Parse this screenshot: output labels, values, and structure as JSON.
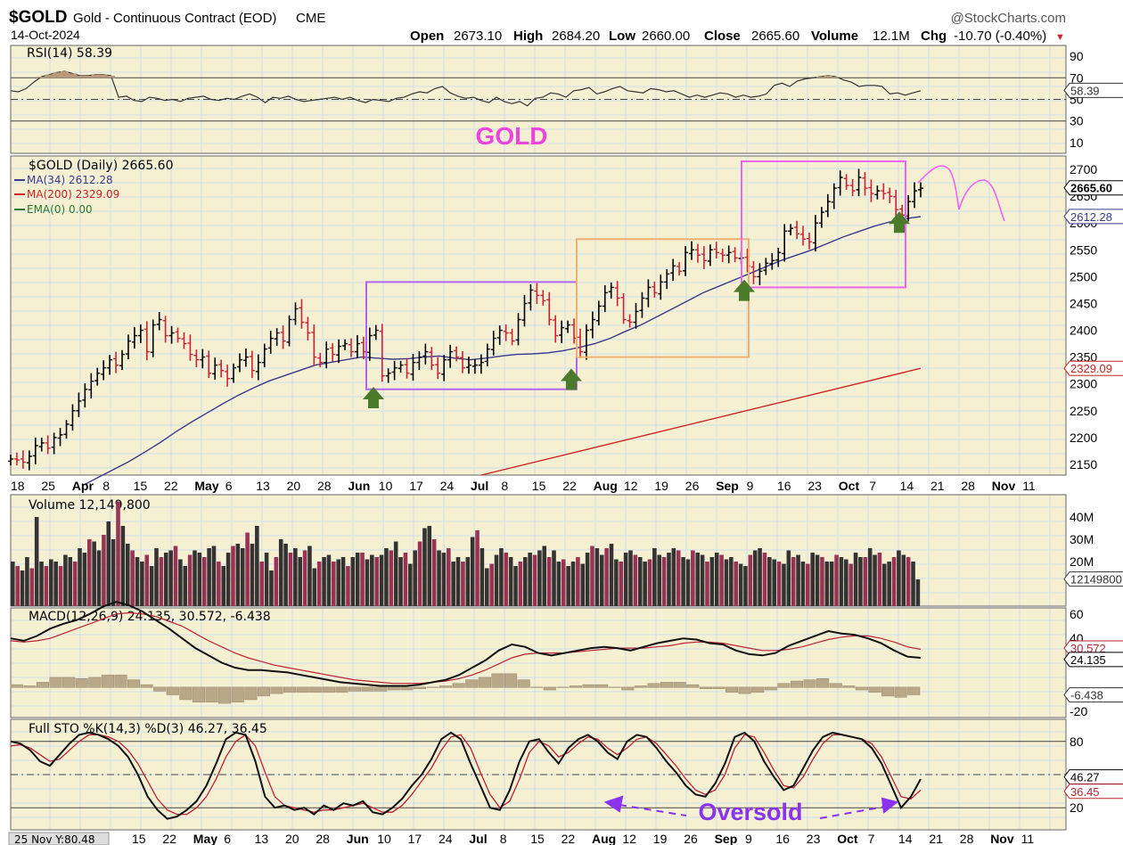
{
  "header": {
    "symbol": "$GOLD",
    "name": "Gold - Continuous Contract (EOD)",
    "exchange": "CME",
    "date": "14-Oct-2024",
    "brand": "@StockCharts.com",
    "open_label": "Open",
    "open": "2673.10",
    "high_label": "High",
    "high": "2684.20",
    "low_label": "Low",
    "low": "2660.00",
    "close_label": "Close",
    "close": "2665.60",
    "volume_label": "Volume",
    "volume": "12.1M",
    "chg_label": "Chg",
    "chg": "-10.70 (-0.40%)",
    "chg_arrow": "▼"
  },
  "annotations": {
    "gold_title": "GOLD",
    "oversold": "Oversold",
    "bottom_readout": "25 Nov Y:80.48"
  },
  "colors": {
    "panel_bg": "#f6f0d3",
    "grid": "#cfe0ea",
    "up_bar": "#000000",
    "down_bar": "#cc2233",
    "ma34": "#3a3a8c",
    "ma200": "#cc2222",
    "ema0": "#2d7a2d",
    "box_purple": "#b066ee",
    "box_orange": "#f0b070",
    "box_magenta": "#ee66ee",
    "arrow_green": "#4a7a2a",
    "magenta_text": "#ee44dd",
    "oversold_text": "#8a33ee",
    "vol_up": "#333333",
    "vol_down": "#993355",
    "macd_hist": "#b8a888"
  },
  "x_axis": {
    "labels": [
      "18",
      "25",
      "Apr",
      "8",
      "15",
      "22",
      "May",
      "6",
      "13",
      "20",
      "28",
      "Jun",
      "10",
      "17",
      "24",
      "Jul",
      "8",
      "15",
      "22",
      "Aug",
      "12",
      "19",
      "26",
      "Sep",
      "9",
      "16",
      "23",
      "Oct",
      "7",
      "14",
      "21",
      "28",
      "Nov",
      "11"
    ],
    "bold": [
      "Apr",
      "May",
      "Jun",
      "Jul",
      "Aug",
      "Sep",
      "Oct",
      "Nov"
    ]
  },
  "x_axis_bottom": {
    "labels": [
      "15",
      "22",
      "May",
      "6",
      "13",
      "20",
      "28",
      "Jun",
      "10",
      "17",
      "24",
      "Jul",
      "8",
      "15",
      "22",
      "Aug",
      "12",
      "19",
      "26",
      "Sep",
      "9",
      "16",
      "23",
      "Oct",
      "7",
      "14",
      "21",
      "28",
      "Nov",
      "11"
    ],
    "bold": [
      "May",
      "Jun",
      "Jul",
      "Aug",
      "Sep",
      "Oct",
      "Nov"
    ]
  },
  "chart_data": [
    {
      "type": "line",
      "panel": "rsi",
      "title": "RSI(14) 58.39",
      "ylim": [
        0,
        100
      ],
      "yticks": [
        "90",
        "70",
        "50",
        "30",
        "10"
      ],
      "reference_lines": [
        70,
        30
      ],
      "last_value_label": "58.39",
      "series": [
        {
          "name": "RSI(14)",
          "values": [
            58,
            57,
            60,
            66,
            71,
            73,
            75,
            76,
            74,
            72,
            72,
            73,
            73,
            72,
            52,
            53,
            49,
            48,
            52,
            51,
            49,
            50,
            48,
            51,
            52,
            53,
            50,
            49,
            51,
            50,
            53,
            55,
            52,
            47,
            52,
            51,
            53,
            50,
            48,
            49,
            50,
            51,
            52,
            50,
            52,
            49,
            47,
            50,
            49,
            48,
            51,
            52,
            55,
            57,
            56,
            60,
            62,
            56,
            53,
            51,
            52,
            49,
            47,
            52,
            48,
            46,
            48,
            44,
            51,
            52,
            56,
            55,
            52,
            58,
            59,
            61,
            55,
            57,
            60,
            62,
            58,
            57,
            56,
            60,
            59,
            57,
            58,
            55,
            52,
            54,
            52,
            54,
            56,
            55,
            52,
            54,
            52,
            53,
            55,
            63,
            65,
            62,
            67,
            69,
            70,
            71,
            72,
            71,
            68,
            66,
            62,
            63,
            63,
            62,
            55,
            56,
            54,
            56,
            58
          ]
        }
      ]
    },
    {
      "type": "bar",
      "panel": "price",
      "title": "$GOLD (Daily) 2665.60",
      "legend": [
        {
          "name": "MA(34) 2612.28",
          "color": "#3a3a8c"
        },
        {
          "name": "MA(200) 2329.09",
          "color": "#cc2222"
        },
        {
          "name": "EMA(0) 0.00",
          "color": "#2d7a2d"
        }
      ],
      "ylim": [
        2130,
        2725
      ],
      "yticks": [
        "2700",
        "2650",
        "2600",
        "2550",
        "2500",
        "2450",
        "2400",
        "2350",
        "2300",
        "2250",
        "2200",
        "2150"
      ],
      "last_value_labels": [
        "2665.60",
        "2612.28",
        "2329.09"
      ],
      "close_series": [
        2160,
        2158,
        2154,
        2165,
        2185,
        2190,
        2180,
        2200,
        2205,
        2225,
        2250,
        2268,
        2290,
        2305,
        2320,
        2330,
        2345,
        2335,
        2355,
        2380,
        2390,
        2400,
        2360,
        2410,
        2420,
        2390,
        2395,
        2385,
        2375,
        2355,
        2345,
        2350,
        2320,
        2335,
        2325,
        2310,
        2330,
        2345,
        2350,
        2325,
        2340,
        2365,
        2385,
        2395,
        2380,
        2420,
        2440,
        2415,
        2395,
        2350,
        2340,
        2365,
        2355,
        2370,
        2375,
        2360,
        2375,
        2360,
        2390,
        2400,
        2315,
        2320,
        2330,
        2335,
        2320,
        2340,
        2350,
        2360,
        2335,
        2320,
        2345,
        2360,
        2350,
        2330,
        2335,
        2335,
        2340,
        2365,
        2385,
        2400,
        2395,
        2380,
        2420,
        2450,
        2475,
        2465,
        2455,
        2420,
        2390,
        2405,
        2410,
        2385,
        2360,
        2400,
        2420,
        2445,
        2470,
        2480,
        2460,
        2420,
        2415,
        2435,
        2460,
        2480,
        2470,
        2490,
        2505,
        2520,
        2510,
        2545,
        2550,
        2540,
        2530,
        2550,
        2545,
        2540,
        2545,
        2535,
        2535,
        2520,
        2500,
        2510,
        2525,
        2530,
        2545,
        2585,
        2590,
        2580,
        2570,
        2565,
        2600,
        2620,
        2640,
        2665,
        2685,
        2670,
        2660,
        2685,
        2665,
        2655,
        2660,
        2655,
        2650,
        2625,
        2615,
        2640,
        2660,
        2665
      ],
      "ma34_series": [
        2110,
        2125,
        2140,
        2155,
        2172,
        2190,
        2210,
        2228,
        2245,
        2262,
        2278,
        2292,
        2305,
        2315,
        2325,
        2335,
        2340,
        2345,
        2350,
        2348,
        2346,
        2347,
        2350,
        2352,
        2348,
        2345,
        2348,
        2352,
        2355,
        2356,
        2358,
        2362,
        2368,
        2375,
        2385,
        2398,
        2410,
        2425,
        2440,
        2455,
        2470,
        2482,
        2494,
        2506,
        2518,
        2530,
        2540,
        2550,
        2562,
        2574,
        2584,
        2594,
        2602,
        2608,
        2612
      ],
      "ma200_range": [
        2130,
        2329.09
      ],
      "boxes": [
        {
          "color": "box_purple",
          "from": "Jun 7",
          "to": "Jul 26",
          "low": 2290,
          "high": 2490
        },
        {
          "color": "box_orange",
          "from": "Jul 26",
          "to": "Sep 4",
          "low": 2350,
          "high": 2570
        },
        {
          "color": "box_magenta",
          "from": "Sep 3",
          "to": "Oct 10",
          "low": 2480,
          "high": 2715
        }
      ],
      "green_arrows": [
        "Jun 10",
        "Jul 26",
        "Sep 6",
        "Oct 10"
      ]
    },
    {
      "type": "bar",
      "panel": "volume",
      "title": "Volume 12,149,800",
      "ylim": [
        0,
        50000000
      ],
      "yticks": [
        "40M",
        "30M",
        "20M"
      ],
      "last_value_label": "12149800",
      "values_m": [
        20,
        18,
        16,
        22,
        17,
        40,
        20,
        18,
        21,
        20,
        18,
        23,
        22,
        20,
        26,
        24,
        30,
        29,
        25,
        32,
        38,
        30,
        47,
        36,
        28,
        25,
        22,
        20,
        23,
        18,
        26,
        22,
        24,
        25,
        27,
        21,
        18,
        23,
        25,
        24,
        22,
        26,
        27,
        20,
        18,
        24,
        27,
        28,
        26,
        33,
        28,
        36,
        20,
        24,
        16,
        22,
        30,
        28,
        24,
        26,
        22,
        25,
        27,
        17,
        20,
        22,
        23,
        20,
        21,
        22,
        18,
        22,
        24,
        24,
        21,
        23,
        22,
        23,
        26,
        25,
        29,
        22,
        24,
        19,
        25,
        29,
        35,
        36,
        30,
        25,
        24,
        26,
        20,
        22,
        20,
        22,
        31,
        34,
        26,
        17,
        19,
        23,
        26,
        24,
        22,
        18,
        20,
        22,
        24,
        23,
        25,
        27,
        22,
        25,
        20,
        21,
        18,
        20,
        22,
        19,
        24,
        27,
        26,
        23,
        26,
        28,
        21,
        20,
        24,
        25,
        23,
        22,
        20,
        21,
        26,
        23,
        22,
        24,
        26,
        25,
        22,
        21,
        25,
        24,
        23,
        20,
        22,
        24,
        23,
        21,
        22,
        20,
        19,
        18,
        23,
        25,
        26,
        24,
        22,
        21,
        20,
        19,
        25,
        22,
        23,
        20,
        19,
        24,
        23,
        22,
        20,
        20,
        23,
        22,
        21,
        19,
        24,
        22,
        22,
        26,
        23,
        24,
        19,
        20,
        22,
        25,
        23,
        22,
        20,
        12
      ]
    },
    {
      "type": "line",
      "panel": "macd",
      "title": "MACD(12,26,9) 24.135, 30.572, -6.438",
      "ylim": [
        -25,
        65
      ],
      "yticks": [
        "60",
        "40",
        "0",
        "-20"
      ],
      "last_value_labels": [
        "30.572",
        "24.135",
        "-6.438"
      ],
      "series": [
        {
          "name": "MACD",
          "values": [
            40,
            38,
            42,
            48,
            52,
            55,
            60,
            66,
            70,
            67,
            62,
            55,
            48,
            40,
            32,
            26,
            20,
            16,
            14,
            14,
            13,
            12,
            10,
            8,
            6,
            4,
            3,
            2,
            1,
            1,
            1,
            2,
            4,
            6,
            10,
            16,
            22,
            30,
            35,
            33,
            28,
            26,
            28,
            30,
            32,
            33,
            32,
            30,
            33,
            36,
            38,
            40,
            39,
            36,
            35,
            30,
            27,
            26,
            28,
            34,
            38,
            42,
            46,
            44,
            43,
            40,
            36,
            30,
            25,
            24
          ]
        },
        {
          "name": "Signal",
          "values": [
            38,
            37,
            38,
            40,
            44,
            48,
            52,
            56,
            60,
            61,
            60,
            58,
            54,
            50,
            44,
            38,
            33,
            28,
            24,
            21,
            18,
            16,
            14,
            12,
            10,
            8,
            6,
            5,
            4,
            3,
            3,
            3,
            4,
            5,
            7,
            10,
            14,
            19,
            24,
            27,
            28,
            28,
            28,
            29,
            30,
            31,
            32,
            32,
            32,
            33,
            34,
            36,
            37,
            37,
            36,
            34,
            32,
            30,
            30,
            31,
            33,
            36,
            39,
            41,
            42,
            42,
            40,
            37,
            33,
            31
          ]
        },
        {
          "name": "Histogram",
          "values": [
            2,
            1,
            4,
            8,
            8,
            7,
            8,
            10,
            10,
            6,
            2,
            -3,
            -6,
            -10,
            -12,
            -12,
            -13,
            -12,
            -10,
            -7,
            -5,
            -4,
            -4,
            -4,
            -4,
            -4,
            -3,
            -3,
            -3,
            -2,
            -2,
            -1,
            0,
            1,
            3,
            6,
            8,
            11,
            11,
            6,
            0,
            -2,
            0,
            1,
            2,
            2,
            0,
            -2,
            1,
            3,
            4,
            4,
            2,
            -1,
            -1,
            -4,
            -5,
            -4,
            -2,
            3,
            5,
            6,
            7,
            3,
            1,
            -2,
            -4,
            -7,
            -8,
            -6
          ]
        }
      ]
    },
    {
      "type": "line",
      "panel": "stochastic",
      "title": "Full STO %K(14,3) %D(3) 46.27, 36.45",
      "ylim": [
        0,
        100
      ],
      "yticks": [
        "80",
        "50",
        "20"
      ],
      "reference_lines": [
        80,
        50,
        20
      ],
      "last_value_labels": [
        "46.27",
        "36.45"
      ],
      "series": [
        {
          "name": "%K",
          "values": [
            80,
            78,
            72,
            62,
            58,
            68,
            78,
            86,
            88,
            86,
            82,
            76,
            66,
            50,
            30,
            18,
            10,
            12,
            18,
            26,
            40,
            60,
            82,
            88,
            86,
            62,
            30,
            20,
            22,
            18,
            20,
            14,
            22,
            18,
            24,
            22,
            26,
            16,
            14,
            20,
            28,
            40,
            50,
            64,
            82,
            88,
            82,
            60,
            40,
            20,
            18,
            36,
            62,
            80,
            82,
            70,
            60,
            74,
            82,
            86,
            80,
            70,
            64,
            80,
            86,
            84,
            74,
            62,
            52,
            40,
            32,
            30,
            42,
            60,
            84,
            88,
            80,
            62,
            48,
            36,
            40,
            56,
            72,
            84,
            88,
            86,
            84,
            82,
            74,
            60,
            40,
            20,
            30,
            46
          ]
        },
        {
          "name": "%D",
          "values": [
            76,
            77,
            74,
            68,
            62,
            64,
            72,
            80,
            86,
            86,
            84,
            80,
            72,
            60,
            44,
            28,
            18,
            14,
            14,
            20,
            30,
            46,
            66,
            80,
            86,
            76,
            52,
            30,
            22,
            20,
            18,
            16,
            18,
            18,
            20,
            22,
            24,
            20,
            16,
            16,
            22,
            32,
            44,
            56,
            72,
            84,
            86,
            74,
            52,
            32,
            20,
            26,
            46,
            70,
            80,
            76,
            66,
            70,
            78,
            84,
            82,
            74,
            68,
            74,
            82,
            84,
            78,
            68,
            58,
            46,
            36,
            32,
            36,
            50,
            74,
            86,
            84,
            70,
            54,
            40,
            38,
            48,
            64,
            78,
            86,
            86,
            84,
            82,
            78,
            66,
            48,
            30,
            28,
            36
          ]
        }
      ]
    }
  ]
}
